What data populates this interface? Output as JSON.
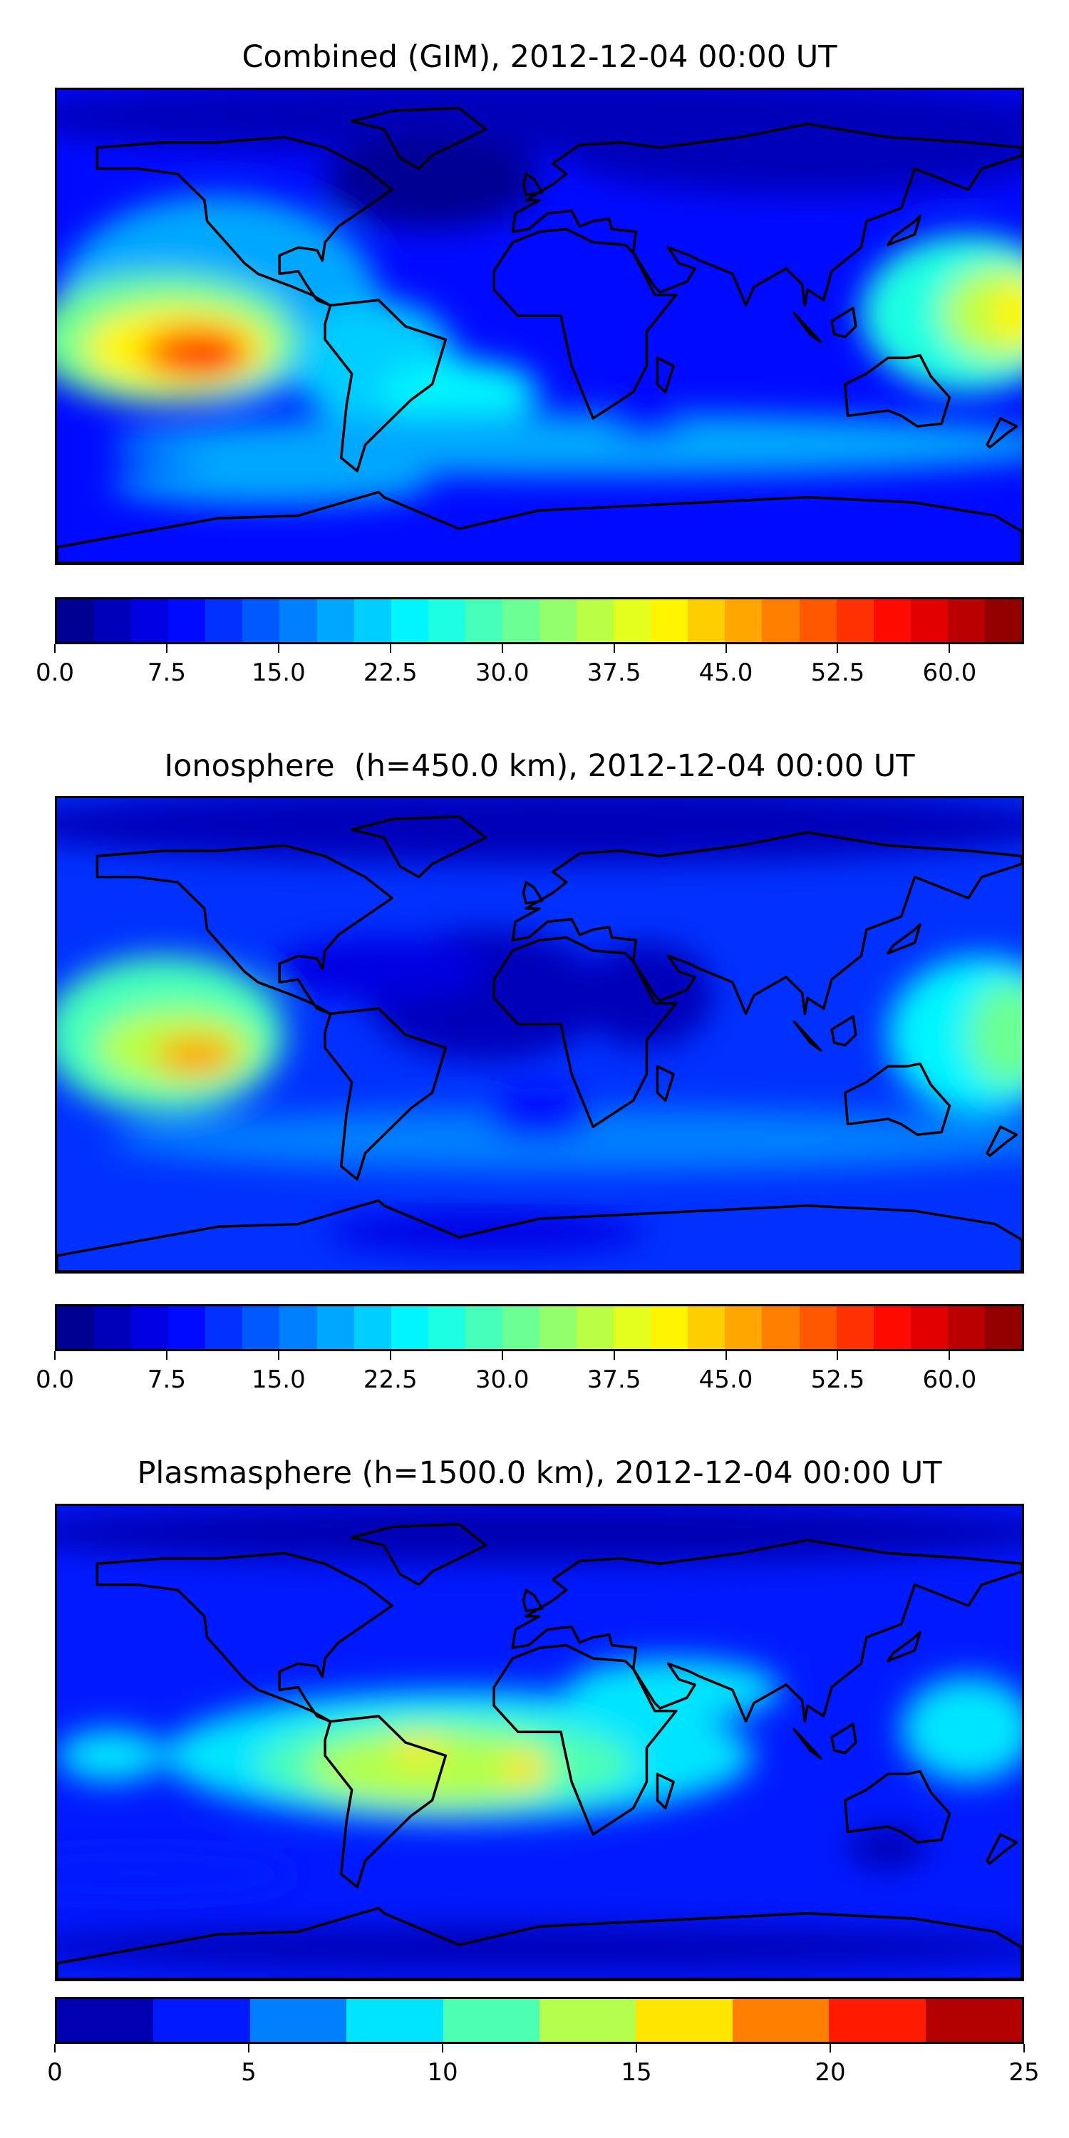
{
  "chart_data": [
    {
      "type": "heatmap",
      "title": "Combined (GIM), 2012-12-04 00:00 UT",
      "projection": "plate carree, global, coastlines",
      "colorbar": {
        "min": 0,
        "max": 65,
        "step": 2.5,
        "colormap": "jet",
        "tick_labels": [
          "0.0",
          "7.5",
          "15.0",
          "22.5",
          "30.0",
          "37.5",
          "45.0",
          "52.5",
          "60.0"
        ]
      },
      "features": [
        {
          "region": "Eastern South Pacific",
          "approx_value": 57
        },
        {
          "region": "Western Pacific / Indonesia",
          "approx_value": 40
        },
        {
          "region": "Arctic",
          "approx_value": 3
        }
      ]
    },
    {
      "type": "heatmap",
      "title": "Ionosphere  (h=450.0 km), 2012-12-04 00:00 UT",
      "projection": "plate carree, global, coastlines",
      "colorbar": {
        "min": 0,
        "max": 65,
        "step": 2.5,
        "colormap": "jet",
        "tick_labels": [
          "0.0",
          "7.5",
          "15.0",
          "22.5",
          "30.0",
          "37.5",
          "45.0",
          "52.5",
          "60.0"
        ]
      },
      "features": [
        {
          "region": "Eastern South Pacific",
          "approx_value": 45
        },
        {
          "region": "Western Pacific",
          "approx_value": 32
        },
        {
          "region": "Atlantic / Africa",
          "approx_value": 4
        }
      ]
    },
    {
      "type": "heatmap",
      "title": "Plasmasphere (h=1500.0 km), 2012-12-04 00:00 UT",
      "projection": "plate carree, global, coastlines",
      "colorbar": {
        "min": 0,
        "max": 25,
        "step": 2.5,
        "colormap": "jet",
        "tick_labels": [
          "0",
          "5",
          "10",
          "15",
          "20",
          "25"
        ]
      },
      "features": [
        {
          "region": "South America / South Atlantic",
          "approx_value": 16
        },
        {
          "region": "Arctic",
          "approx_value": 2
        }
      ]
    }
  ]
}
